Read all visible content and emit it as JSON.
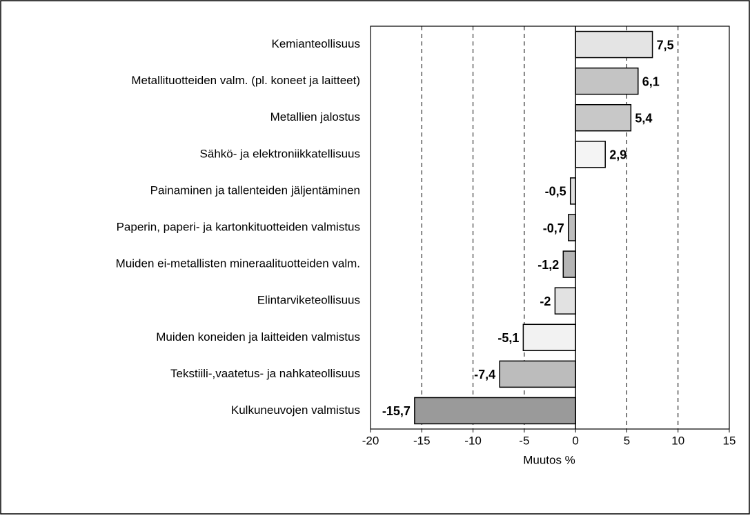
{
  "chart_data": {
    "type": "hbar",
    "xlabel": "Muutos %",
    "categories": [
      "Kemianteollisuus",
      "Metallituotteiden valm. (pl. koneet ja laitteet)",
      "Metallien jalostus",
      "Sähkö- ja elektroniikkatellisuus",
      "Painaminen ja tallenteiden jäljentäminen",
      "Paperin, paperi- ja kartonkituotteiden valmistus",
      "Muiden ei-metallisten mineraalituotteiden valm.",
      "Elintarviketeollisuus",
      "Muiden koneiden ja laitteiden valmistus",
      "Tekstiili-,vaatetus- ja nahkateollisuus",
      "Kulkuneuvojen valmistus"
    ],
    "values": [
      7.5,
      6.1,
      5.4,
      2.9,
      -0.5,
      -0.7,
      -1.2,
      -2,
      -5.1,
      -7.4,
      -15.7
    ],
    "value_labels": [
      "7,5",
      "6,1",
      "5,4",
      "2,9",
      "-0,5",
      "-0,7",
      "-1,2",
      "-2",
      "-5,1",
      "-7,4",
      "-15,7"
    ],
    "colors": [
      "#e4e4e4",
      "#c4c4c4",
      "#c8c8c8",
      "#f4f4f4",
      "#e0e0e0",
      "#bdbdbd",
      "#b5b5b5",
      "#e2e2e2",
      "#f2f2f2",
      "#bcbcbc",
      "#9a9a9a"
    ],
    "xlim": [
      -20,
      15
    ],
    "xticks": [
      -20,
      -15,
      -10,
      -5,
      0,
      5,
      10,
      15
    ],
    "grid": true
  }
}
